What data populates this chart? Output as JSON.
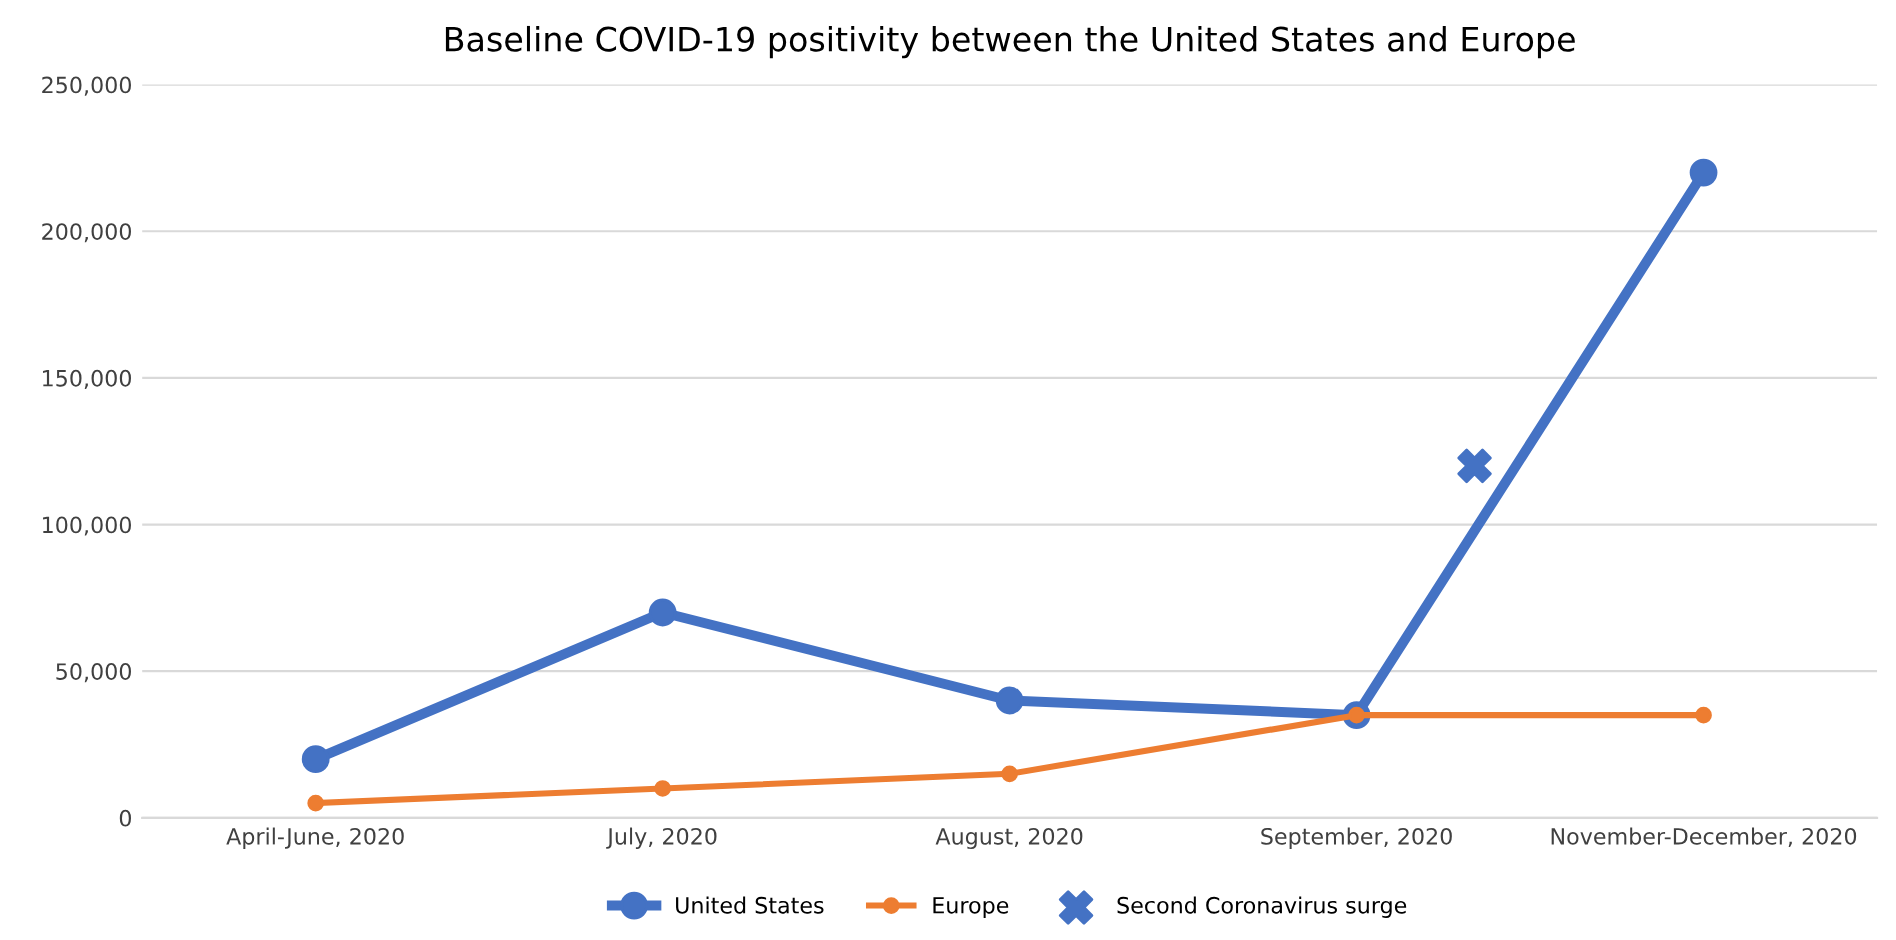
{
  "chart_data": {
    "type": "line",
    "title": "Baseline COVID-19 positivity between the United States and Europe",
    "categories": [
      "April-June, 2020",
      "July, 2020",
      "August, 2020",
      "September, 2020",
      "November-December, 2020"
    ],
    "series": [
      {
        "name": "United States",
        "color": "#4472c4",
        "values": [
          20000,
          70000,
          40000,
          35000,
          220000
        ]
      },
      {
        "name": "Europe",
        "color": "#ed7d31",
        "values": [
          5000,
          10000,
          15000,
          35000,
          35000
        ]
      },
      {
        "name": "Second Coronavirus surge",
        "type": "scatter",
        "marker": "cross",
        "color": "#4472c4",
        "values": [
          null,
          null,
          null,
          120000,
          null
        ]
      }
    ],
    "marker": "circle",
    "ylim": [
      0,
      250000
    ],
    "yticks": [
      {
        "value": 0,
        "label": "0"
      },
      {
        "value": 50000,
        "label": "50,000"
      },
      {
        "value": 100000,
        "label": "100,000"
      },
      {
        "value": 150000,
        "label": "150,000"
      },
      {
        "value": 200000,
        "label": "200,000"
      },
      {
        "value": 250000,
        "label": "250,000"
      }
    ],
    "grid": "y",
    "legend": "bottom"
  }
}
